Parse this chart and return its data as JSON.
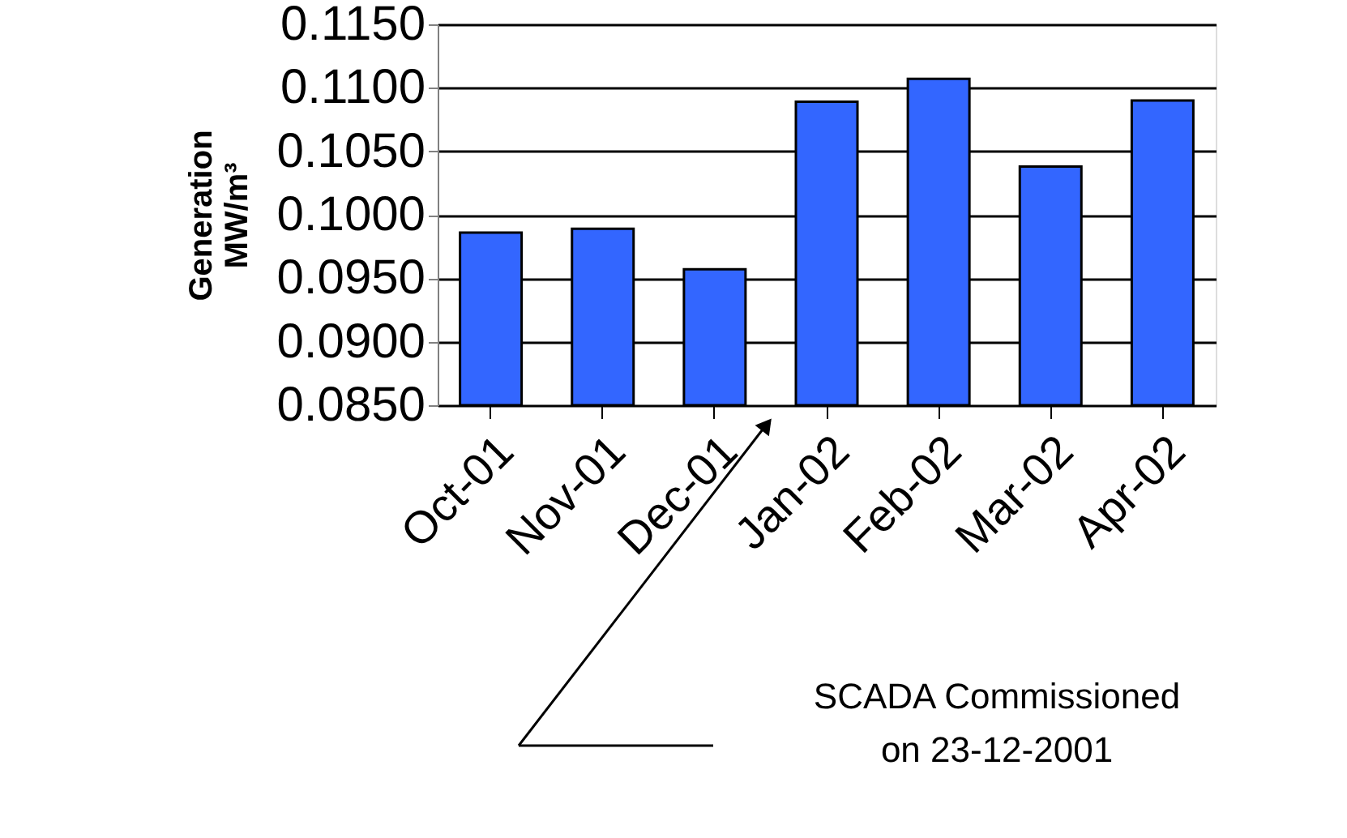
{
  "chart_data": {
    "type": "bar",
    "ylabel": "Generation MW/m³",
    "categories": [
      "Oct-01",
      "Nov-01",
      "Dec-01",
      "Jan-02",
      "Feb-02",
      "Mar-02",
      "Apr-02"
    ],
    "values": [
      0.0986,
      0.0989,
      0.0957,
      0.1089,
      0.1107,
      0.1038,
      0.109
    ],
    "color": "#3366ff",
    "ylim": [
      0.085,
      0.115
    ],
    "yticks": [
      {
        "value": 0.085,
        "label": "0.0850"
      },
      {
        "value": 0.09,
        "label": "0.0900"
      },
      {
        "value": 0.095,
        "label": "0.0950"
      },
      {
        "value": 0.1,
        "label": "0.1000"
      },
      {
        "value": 0.105,
        "label": "0.1050"
      },
      {
        "value": 0.11,
        "label": "0.1100"
      },
      {
        "value": 0.115,
        "label": "0.1150"
      }
    ],
    "grid": "y",
    "annotations": [
      "SCADA Commissioned",
      "on 23-12-2001"
    ]
  }
}
